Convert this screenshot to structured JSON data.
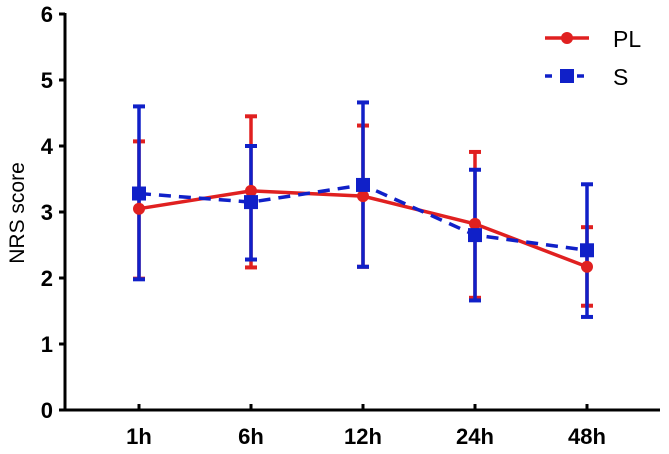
{
  "chart_data": {
    "type": "line",
    "title": "",
    "xlabel": "",
    "ylabel": "NRS score",
    "ylim": [
      0,
      6
    ],
    "yticks": [
      "0",
      "1",
      "2",
      "3",
      "4",
      "5",
      "6"
    ],
    "categories": [
      "1h",
      "6h",
      "12h",
      "24h",
      "48h"
    ],
    "grid": false,
    "legend_position": "top-right",
    "error_bars": true,
    "series": [
      {
        "name": "PL",
        "color": "#e02020",
        "line_style": "solid",
        "marker": "circle",
        "values": [
          3.05,
          3.32,
          3.24,
          2.82,
          2.17
        ],
        "error_upper": [
          4.07,
          4.45,
          4.31,
          3.91,
          2.77
        ],
        "error_lower": [
          1.99,
          2.16,
          2.17,
          1.7,
          1.58
        ]
      },
      {
        "name": "S",
        "color": "#1020c8",
        "line_style": "dashed",
        "marker": "square",
        "values": [
          3.28,
          3.15,
          3.41,
          2.65,
          2.42
        ],
        "error_upper": [
          4.6,
          4.0,
          4.66,
          3.64,
          3.42
        ],
        "error_lower": [
          1.98,
          2.28,
          2.17,
          1.66,
          1.41
        ]
      }
    ]
  }
}
